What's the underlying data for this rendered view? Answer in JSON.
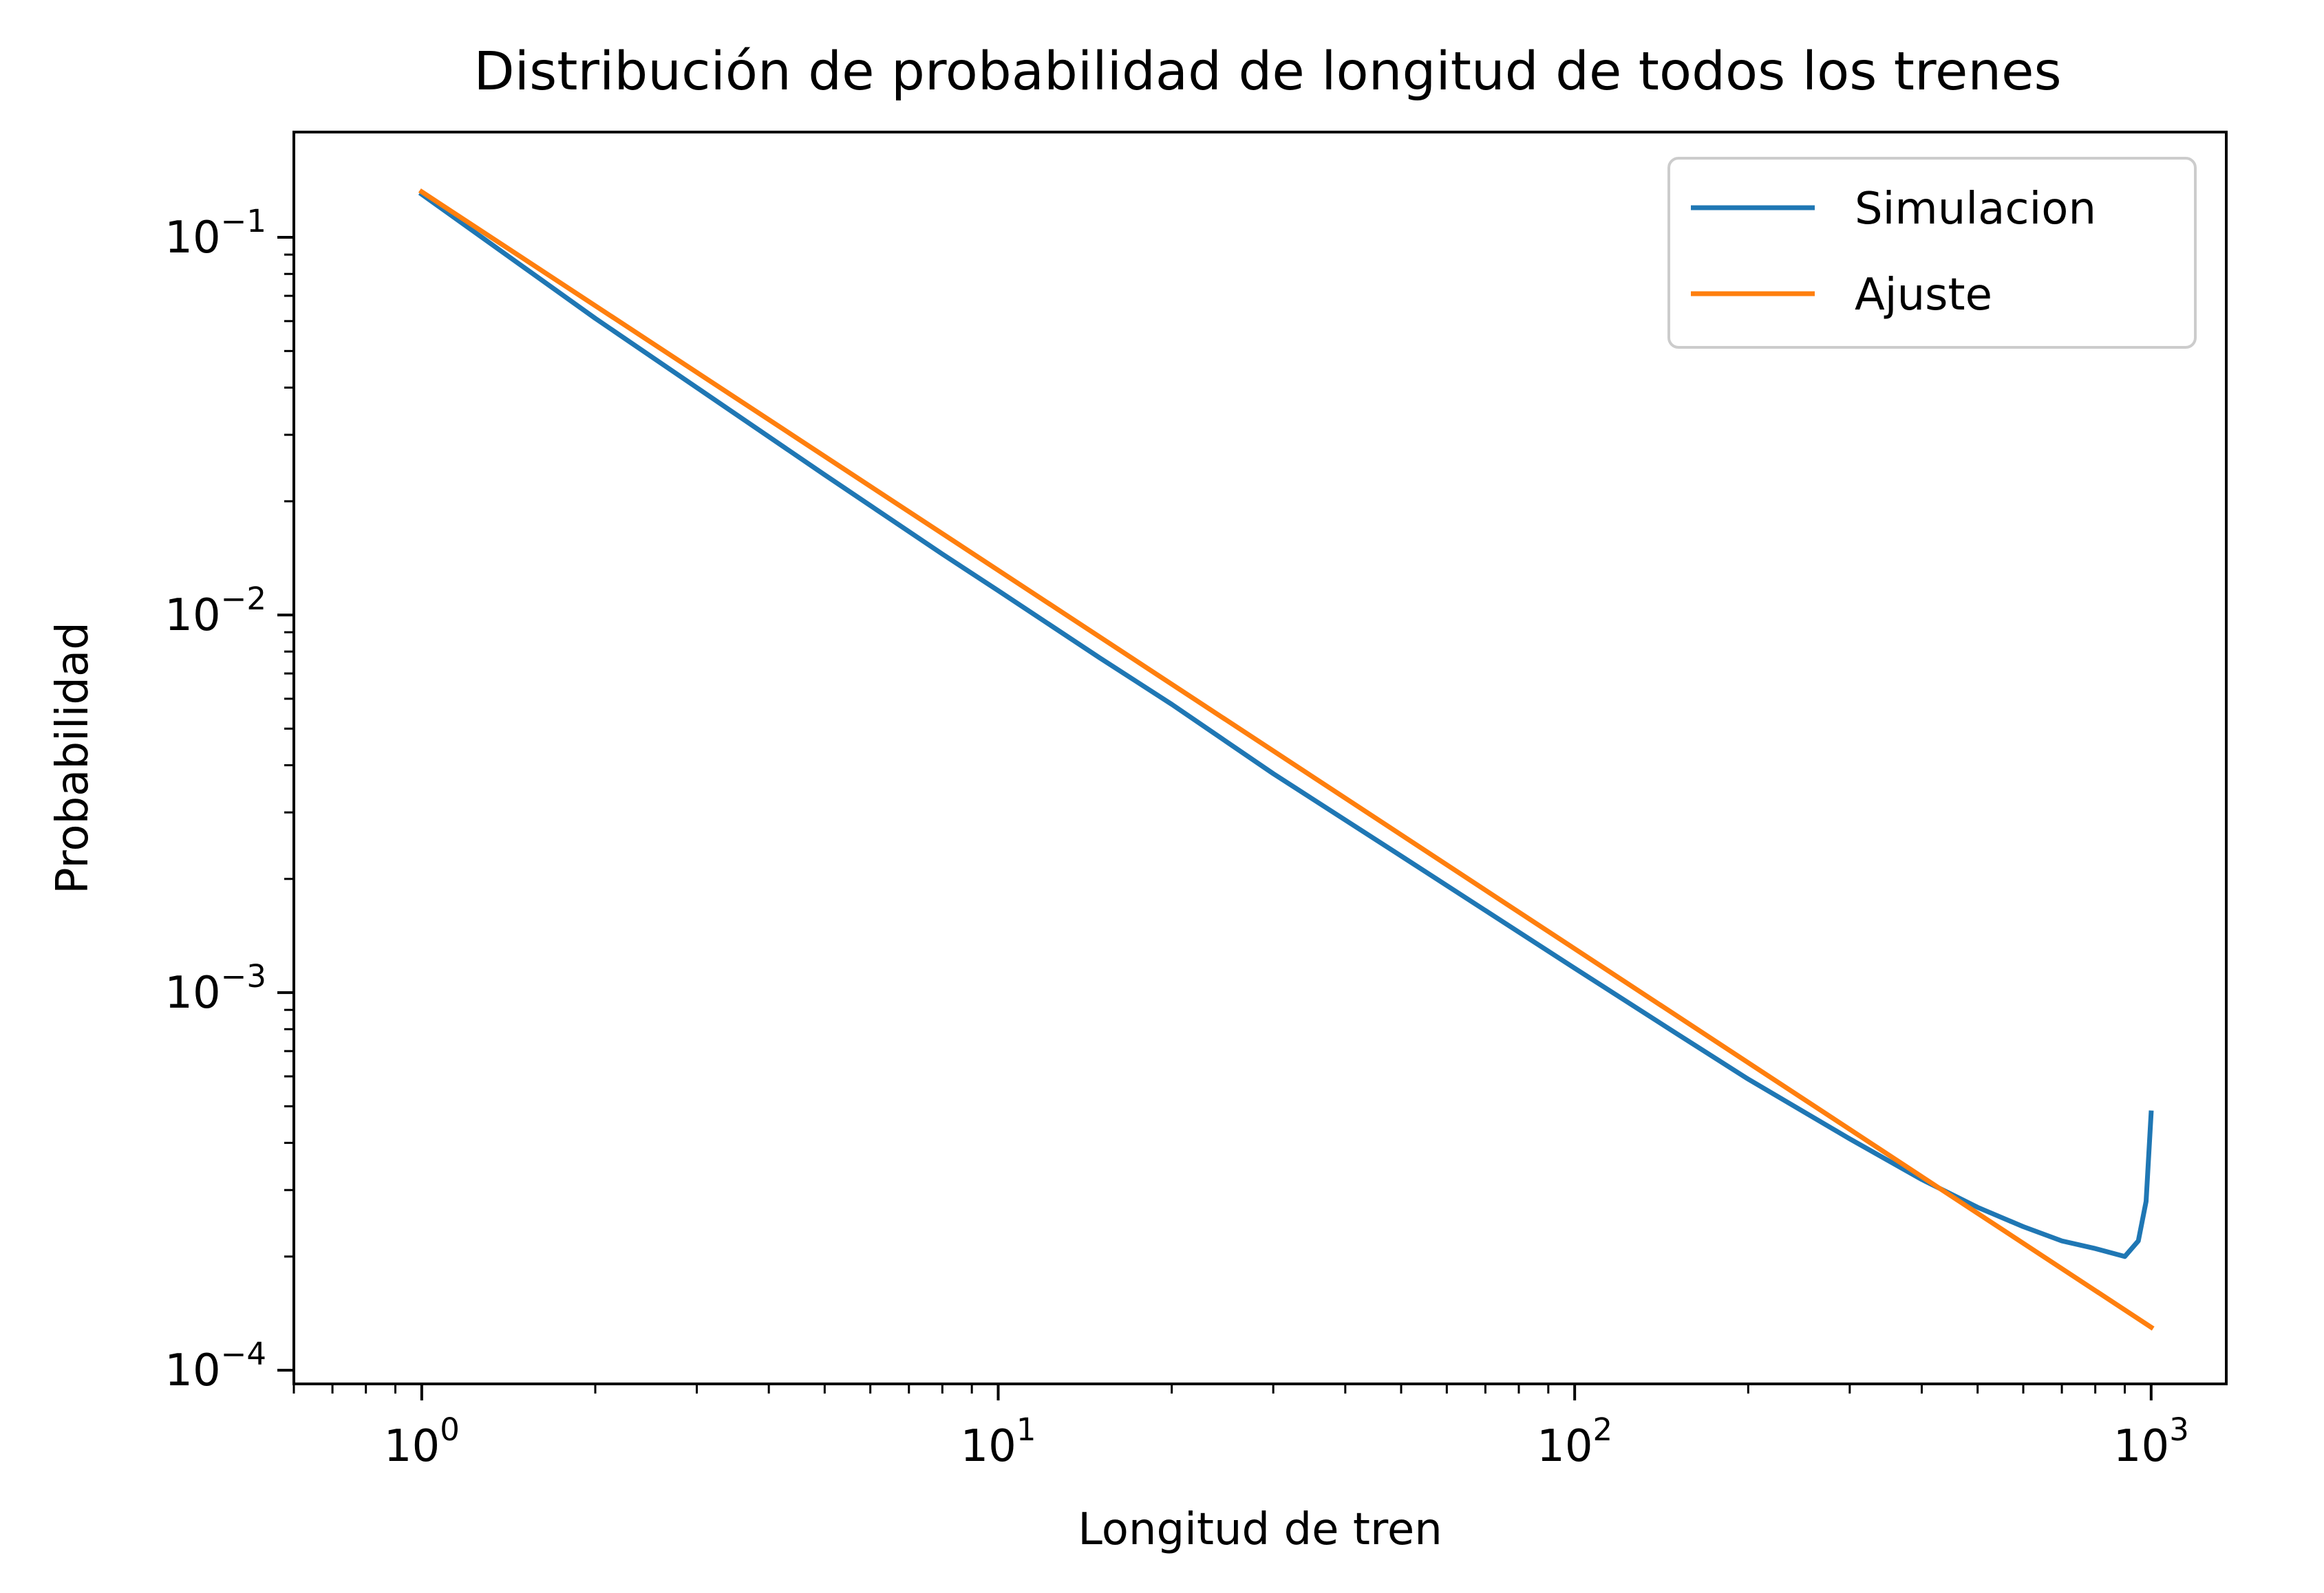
{
  "chart_data": {
    "type": "line",
    "title": "Distribución de probabilidad de longitud de todos los trenes",
    "xlabel": "Longitud de tren",
    "ylabel": "Probabilidad",
    "xscale": "log",
    "yscale": "log",
    "xlim": [
      0.6,
      1350
    ],
    "ylim": [
      9.2e-05,
      0.19
    ],
    "x_ticks": [
      {
        "base": "10",
        "exp": "0",
        "value": 1
      },
      {
        "base": "10",
        "exp": "1",
        "value": 10
      },
      {
        "base": "10",
        "exp": "2",
        "value": 100
      },
      {
        "base": "10",
        "exp": "3",
        "value": 1000
      }
    ],
    "y_ticks": [
      {
        "base": "10",
        "exp": "−1",
        "value": 0.1
      },
      {
        "base": "10",
        "exp": "−2",
        "value": 0.01
      },
      {
        "base": "10",
        "exp": "−3",
        "value": 0.001
      },
      {
        "base": "10",
        "exp": "−4",
        "value": 0.0001
      }
    ],
    "grid": false,
    "legend_position": "top-right",
    "series": [
      {
        "name": "Simulacion",
        "color": "#1f77b4",
        "x": [
          1,
          2,
          3,
          5,
          8,
          10,
          15,
          20,
          30,
          50,
          70,
          100,
          150,
          200,
          300,
          400,
          500,
          600,
          700,
          800,
          900,
          950,
          980,
          1000
        ],
        "y": [
          0.13,
          0.061,
          0.04,
          0.0235,
          0.0145,
          0.0116,
          0.0077,
          0.0058,
          0.0038,
          0.0023,
          0.00165,
          0.00116,
          0.00078,
          0.00059,
          0.00041,
          0.00032,
          0.00027,
          0.00024,
          0.00022,
          0.00021,
          0.0002,
          0.00022,
          0.00028,
          0.00048
        ]
      },
      {
        "name": "Ajuste",
        "color": "#ff7f0e",
        "x": [
          1,
          1000
        ],
        "y": [
          0.132,
          0.00013
        ]
      }
    ]
  }
}
